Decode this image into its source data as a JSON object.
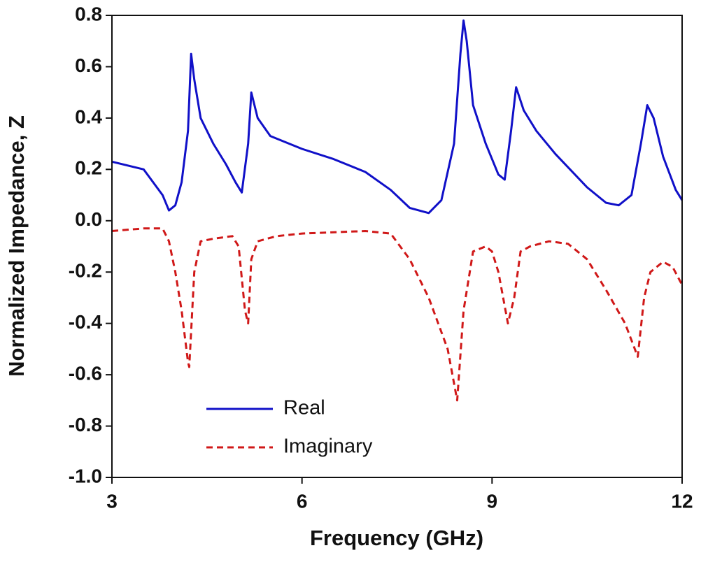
{
  "chart_data": {
    "type": "line",
    "xlabel": "Frequency (GHz)",
    "ylabel": "Normalized Impedance, Z",
    "xlim": [
      3,
      12
    ],
    "xticks": [
      3,
      6,
      9,
      12
    ],
    "ylim": [
      -1,
      0.8
    ],
    "yticks": [
      {
        "value": -1,
        "label": "-1.0"
      },
      -0.8,
      -0.6,
      -0.4,
      -0.2,
      {
        "value": 0,
        "label": "0.0"
      },
      0.2,
      0.4,
      0.6,
      0.8
    ],
    "legend": "lower left",
    "series": [
      {
        "name": "Real",
        "color": "#1010c8",
        "dash": "solid",
        "x": [
          3,
          3.5,
          3.8,
          3.9,
          4.0,
          4.1,
          4.2,
          4.25,
          4.3,
          4.4,
          4.6,
          4.8,
          4.95,
          5.05,
          5.15,
          5.2,
          5.3,
          5.5,
          6.0,
          6.5,
          7.0,
          7.4,
          7.7,
          8.0,
          8.2,
          8.4,
          8.5,
          8.55,
          8.6,
          8.7,
          8.9,
          9.1,
          9.2,
          9.3,
          9.38,
          9.5,
          9.7,
          10.0,
          10.5,
          10.8,
          11.0,
          11.2,
          11.35,
          11.45,
          11.55,
          11.7,
          11.9,
          12
        ],
        "values": [
          0.23,
          0.2,
          0.1,
          0.04,
          0.06,
          0.15,
          0.35,
          0.65,
          0.55,
          0.4,
          0.3,
          0.22,
          0.15,
          0.11,
          0.3,
          0.5,
          0.4,
          0.33,
          0.28,
          0.24,
          0.19,
          0.12,
          0.05,
          0.03,
          0.08,
          0.3,
          0.65,
          0.78,
          0.7,
          0.45,
          0.3,
          0.18,
          0.16,
          0.35,
          0.52,
          0.43,
          0.35,
          0.26,
          0.13,
          0.07,
          0.06,
          0.1,
          0.3,
          0.45,
          0.4,
          0.25,
          0.12,
          0.08
        ]
      },
      {
        "name": "Imaginary",
        "color": "#d01818",
        "dash": "dashed",
        "x": [
          3,
          3.5,
          3.8,
          3.9,
          4.0,
          4.1,
          4.2,
          4.22,
          4.3,
          4.4,
          4.6,
          4.9,
          5.0,
          5.1,
          5.15,
          5.2,
          5.3,
          5.6,
          6.0,
          7.0,
          7.4,
          7.7,
          8.0,
          8.3,
          8.45,
          8.55,
          8.7,
          8.9,
          9.0,
          9.1,
          9.25,
          9.35,
          9.45,
          9.6,
          9.9,
          10.2,
          10.5,
          10.8,
          11.1,
          11.3,
          11.4,
          11.5,
          11.7,
          11.85,
          12
        ],
        "values": [
          -0.04,
          -0.03,
          -0.03,
          -0.08,
          -0.2,
          -0.35,
          -0.55,
          -0.57,
          -0.2,
          -0.08,
          -0.07,
          -0.06,
          -0.1,
          -0.35,
          -0.4,
          -0.15,
          -0.08,
          -0.06,
          -0.05,
          -0.04,
          -0.05,
          -0.15,
          -0.3,
          -0.5,
          -0.7,
          -0.35,
          -0.12,
          -0.1,
          -0.12,
          -0.2,
          -0.4,
          -0.3,
          -0.12,
          -0.1,
          -0.08,
          -0.09,
          -0.15,
          -0.27,
          -0.4,
          -0.53,
          -0.3,
          -0.2,
          -0.16,
          -0.18,
          -0.25
        ]
      }
    ]
  }
}
